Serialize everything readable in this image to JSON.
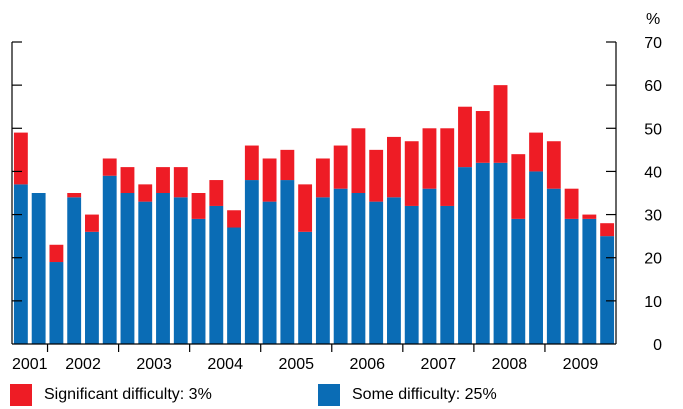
{
  "chart_data": {
    "type": "bar",
    "stacked": true,
    "x_year_labels": [
      "2001",
      "2002",
      "2003",
      "2004",
      "2005",
      "2006",
      "2007",
      "2008",
      "2009"
    ],
    "y_unit": "%",
    "ylim": [
      0,
      70
    ],
    "yticks": [
      0,
      10,
      20,
      30,
      40,
      50,
      60,
      70
    ],
    "grid": false,
    "y_axis_position": "right",
    "legend_position": "bottom",
    "series": [
      {
        "name": "Some difficulty: 25%",
        "color": "#0a6cb5",
        "values": [
          37,
          35,
          19,
          34,
          26,
          39,
          35,
          33,
          35,
          34,
          29,
          32,
          27,
          38,
          33,
          38,
          26,
          34,
          36,
          35,
          33,
          34,
          32,
          36,
          32,
          41,
          42,
          42,
          29,
          40,
          36,
          29,
          29,
          25
        ]
      },
      {
        "name": "Significant difficulty: 3%",
        "color": "#ee1c25",
        "values": [
          12,
          0,
          4,
          1,
          4,
          4,
          6,
          4,
          6,
          7,
          6,
          6,
          4,
          8,
          10,
          7,
          11,
          9,
          10,
          15,
          12,
          14,
          15,
          14,
          18,
          14,
          12,
          18,
          15,
          9,
          11,
          7,
          1,
          3
        ]
      }
    ],
    "totals": [
      49,
      35,
      23,
      35,
      30,
      43,
      41,
      37,
      41,
      41,
      35,
      38,
      31,
      46,
      43,
      45,
      37,
      43,
      46,
      50,
      45,
      48,
      47,
      50,
      50,
      55,
      54,
      60,
      44,
      49,
      47,
      36,
      30,
      28
    ]
  },
  "legend": {
    "significant_label": "Significant difficulty: 3%",
    "some_label": "Some difficulty: 25%",
    "significant_color": "#ee1c25",
    "some_color": "#0a6cb5"
  }
}
